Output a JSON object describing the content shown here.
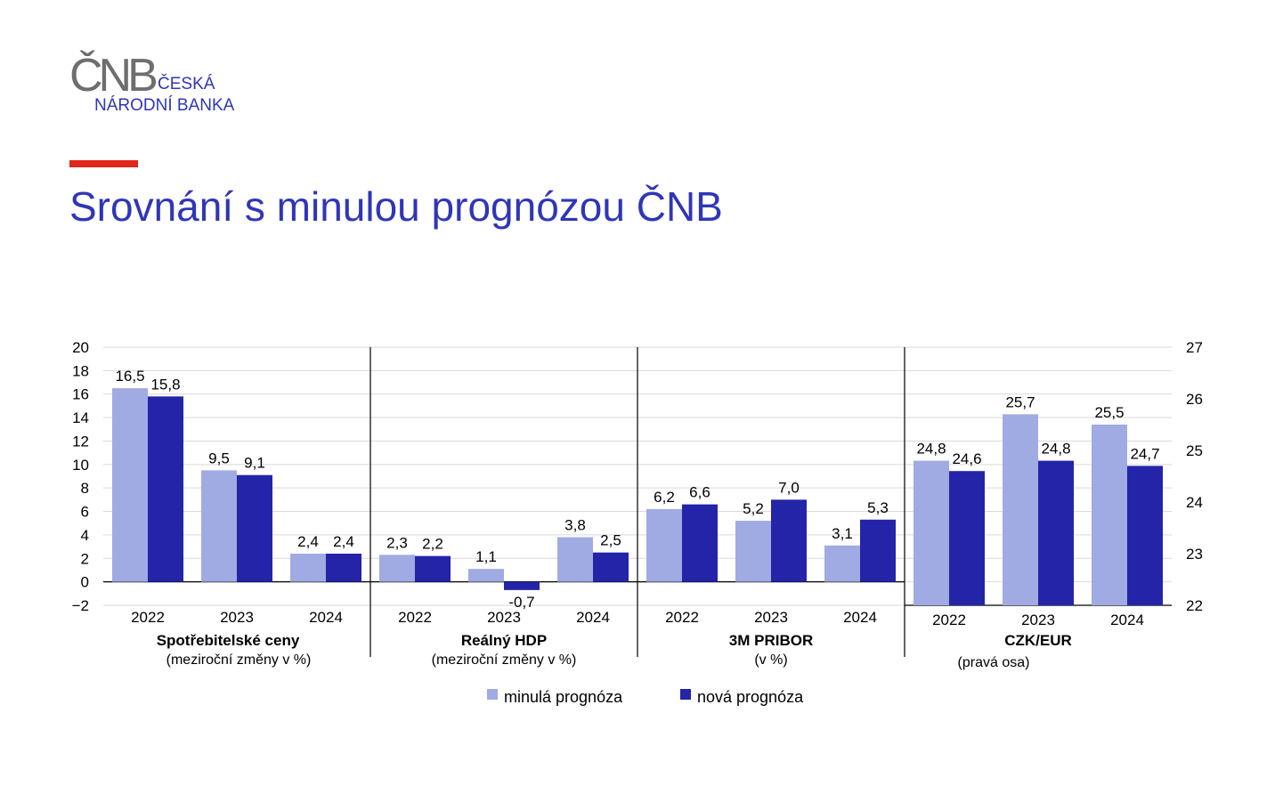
{
  "logo": {
    "mark": "ČNB",
    "line1": "ČESKÁ",
    "line2": "NÁRODNÍ BANKA"
  },
  "page_title": "Srovnání s minulou prognózou ČNB",
  "colors": {
    "brand_blue": "#2f36b7",
    "accent_red": "#e1261c",
    "old_forecast": "#a0aae3",
    "new_forecast": "#2424a8"
  },
  "chart_data": {
    "type": "bar",
    "left_axis": {
      "ticks": [
        "20",
        "18",
        "16",
        "14",
        "12",
        "10",
        "8",
        "6",
        "4",
        "2",
        "0",
        "−2"
      ],
      "ylim": [
        -2,
        20
      ]
    },
    "right_axis": {
      "ticks": [
        "27",
        "26",
        "25",
        "24",
        "23",
        "22"
      ],
      "ylim": [
        22,
        27
      ]
    },
    "grid": true,
    "legend": {
      "position": "bottom-center",
      "items": [
        "minulá prognóza",
        "nová prognóza"
      ]
    },
    "groups": [
      {
        "title": "Spotřebitelské ceny",
        "subtitle": "(meziroční změny v %)",
        "axis": "left",
        "categories": [
          "2022",
          "2023",
          "2024"
        ],
        "series": [
          {
            "name": "minulá prognóza",
            "values": [
              16.5,
              9.5,
              2.4
            ],
            "labels": [
              "16,5",
              "9,5",
              "2,4"
            ]
          },
          {
            "name": "nová prognóza",
            "values": [
              15.8,
              9.1,
              2.4
            ],
            "labels": [
              "15,8",
              "9,1",
              "2,4"
            ]
          }
        ]
      },
      {
        "title": "Reálný HDP",
        "subtitle": "(meziroční změny v %)",
        "axis": "left",
        "categories": [
          "2022",
          "2023",
          "2024"
        ],
        "series": [
          {
            "name": "minulá prognóza",
            "values": [
              2.3,
              1.1,
              3.8
            ],
            "labels": [
              "2,3",
              "1,1",
              "3,8"
            ]
          },
          {
            "name": "nová prognóza",
            "values": [
              2.2,
              -0.7,
              2.5
            ],
            "labels": [
              "2,2",
              "-0,7",
              "2,5"
            ]
          }
        ]
      },
      {
        "title": "3M PRIBOR",
        "subtitle": "(v %)",
        "axis": "left",
        "categories": [
          "2022",
          "2023",
          "2024"
        ],
        "series": [
          {
            "name": "minulá prognóza",
            "values": [
              6.2,
              5.2,
              3.1
            ],
            "labels": [
              "6,2",
              "5,2",
              "3,1"
            ]
          },
          {
            "name": "nová prognóza",
            "values": [
              6.6,
              7.0,
              5.3
            ],
            "labels": [
              "6,6",
              "7,0",
              "5,3"
            ]
          }
        ]
      },
      {
        "title": "CZK/EUR",
        "subtitle": "(pravá osa)",
        "axis": "right",
        "categories": [
          "2022",
          "2023",
          "2024"
        ],
        "series": [
          {
            "name": "minulá prognóza",
            "values": [
              24.8,
              25.7,
              25.5
            ],
            "labels": [
              "24,8",
              "25,7",
              "25,5"
            ]
          },
          {
            "name": "nová prognóza",
            "values": [
              24.6,
              24.8,
              24.7
            ],
            "labels": [
              "24,6",
              "24,8",
              "24,7"
            ]
          }
        ]
      }
    ]
  }
}
